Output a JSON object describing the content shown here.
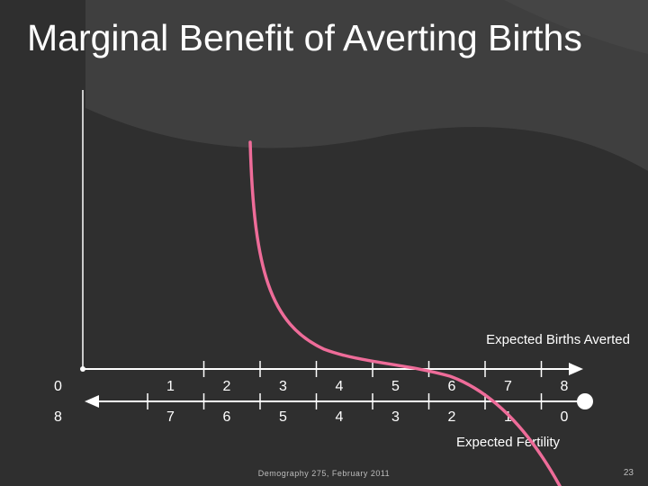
{
  "slide": {
    "title": "Marginal Benefit of Averting Births",
    "footer": "Demography 275, February 2011",
    "page_number": "23"
  },
  "colors": {
    "background": "#2f2f2f",
    "panel": "#3f3f3f",
    "axis": "#ffffff",
    "curve": "#ee6c99"
  },
  "axes": {
    "top_label": "Expected Births Averted",
    "bottom_label": "Expected Fertility",
    "top_ticks": [
      "0",
      "1",
      "2",
      "3",
      "4",
      "5",
      "6",
      "7",
      "8"
    ],
    "bottom_ticks": [
      "8",
      "7",
      "6",
      "5",
      "4",
      "3",
      "2",
      "1",
      "0"
    ]
  }
}
